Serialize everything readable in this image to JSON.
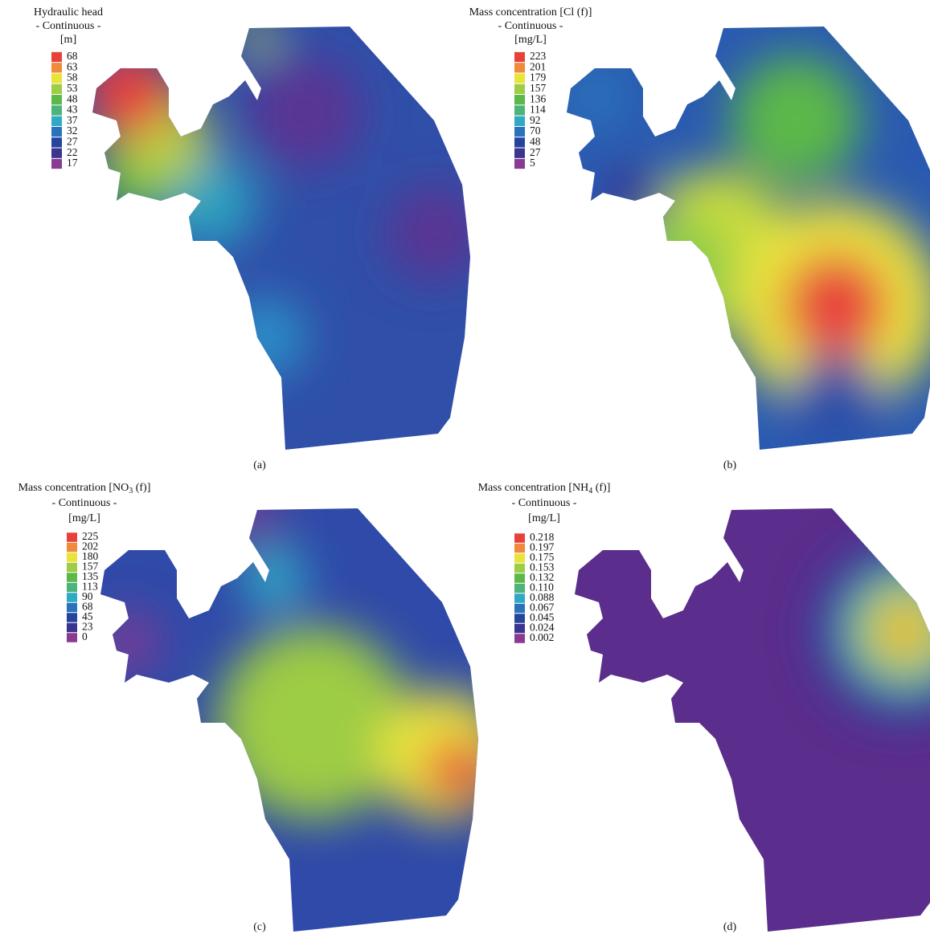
{
  "panels": [
    {
      "title_lines": [
        "Hydraulic head",
        "- Continuous -",
        "[m]"
      ],
      "legend_labels": [
        "68",
        "63",
        "58",
        "53",
        "48",
        "43",
        "37",
        "32",
        "27",
        "22",
        "17"
      ],
      "caption": "(a)"
    },
    {
      "title_lines": [
        "Mass concentration [Cl (f)]",
        "- Continuous -",
        "[mg/L]"
      ],
      "legend_labels": [
        "223",
        "201",
        "179",
        "157",
        "136",
        "114",
        "92",
        "70",
        "48",
        "27",
        "5"
      ],
      "caption": "(b)"
    },
    {
      "title_lines": [
        {
          "text": "Mass concentration [NO",
          "sub": "3",
          "tail": " (f)]"
        },
        "- Continuous -",
        "[mg/L]"
      ],
      "legend_labels": [
        "225",
        "202",
        "180",
        "157",
        "135",
        "113",
        "90",
        "68",
        "45",
        "23",
        "0"
      ],
      "caption": "(c)"
    },
    {
      "title_lines": [
        {
          "text": "Mass concentration [NH",
          "sub": "4",
          "tail": " (f)]"
        },
        "- Continuous -",
        "[mg/L]"
      ],
      "legend_labels": [
        "0.218",
        "0.197",
        "0.175",
        "0.153",
        "0.132",
        "0.110",
        "0.088",
        "0.067",
        "0.045",
        "0.024",
        "0.002"
      ],
      "caption": "(d)"
    }
  ],
  "legend_colors": [
    "#e8413c",
    "#f08a3c",
    "#e9e43c",
    "#9dcc45",
    "#5cb848",
    "#4cb37a",
    "#2eaac4",
    "#2a73bb",
    "#25449c",
    "#3a3591",
    "#8b3a94"
  ]
}
